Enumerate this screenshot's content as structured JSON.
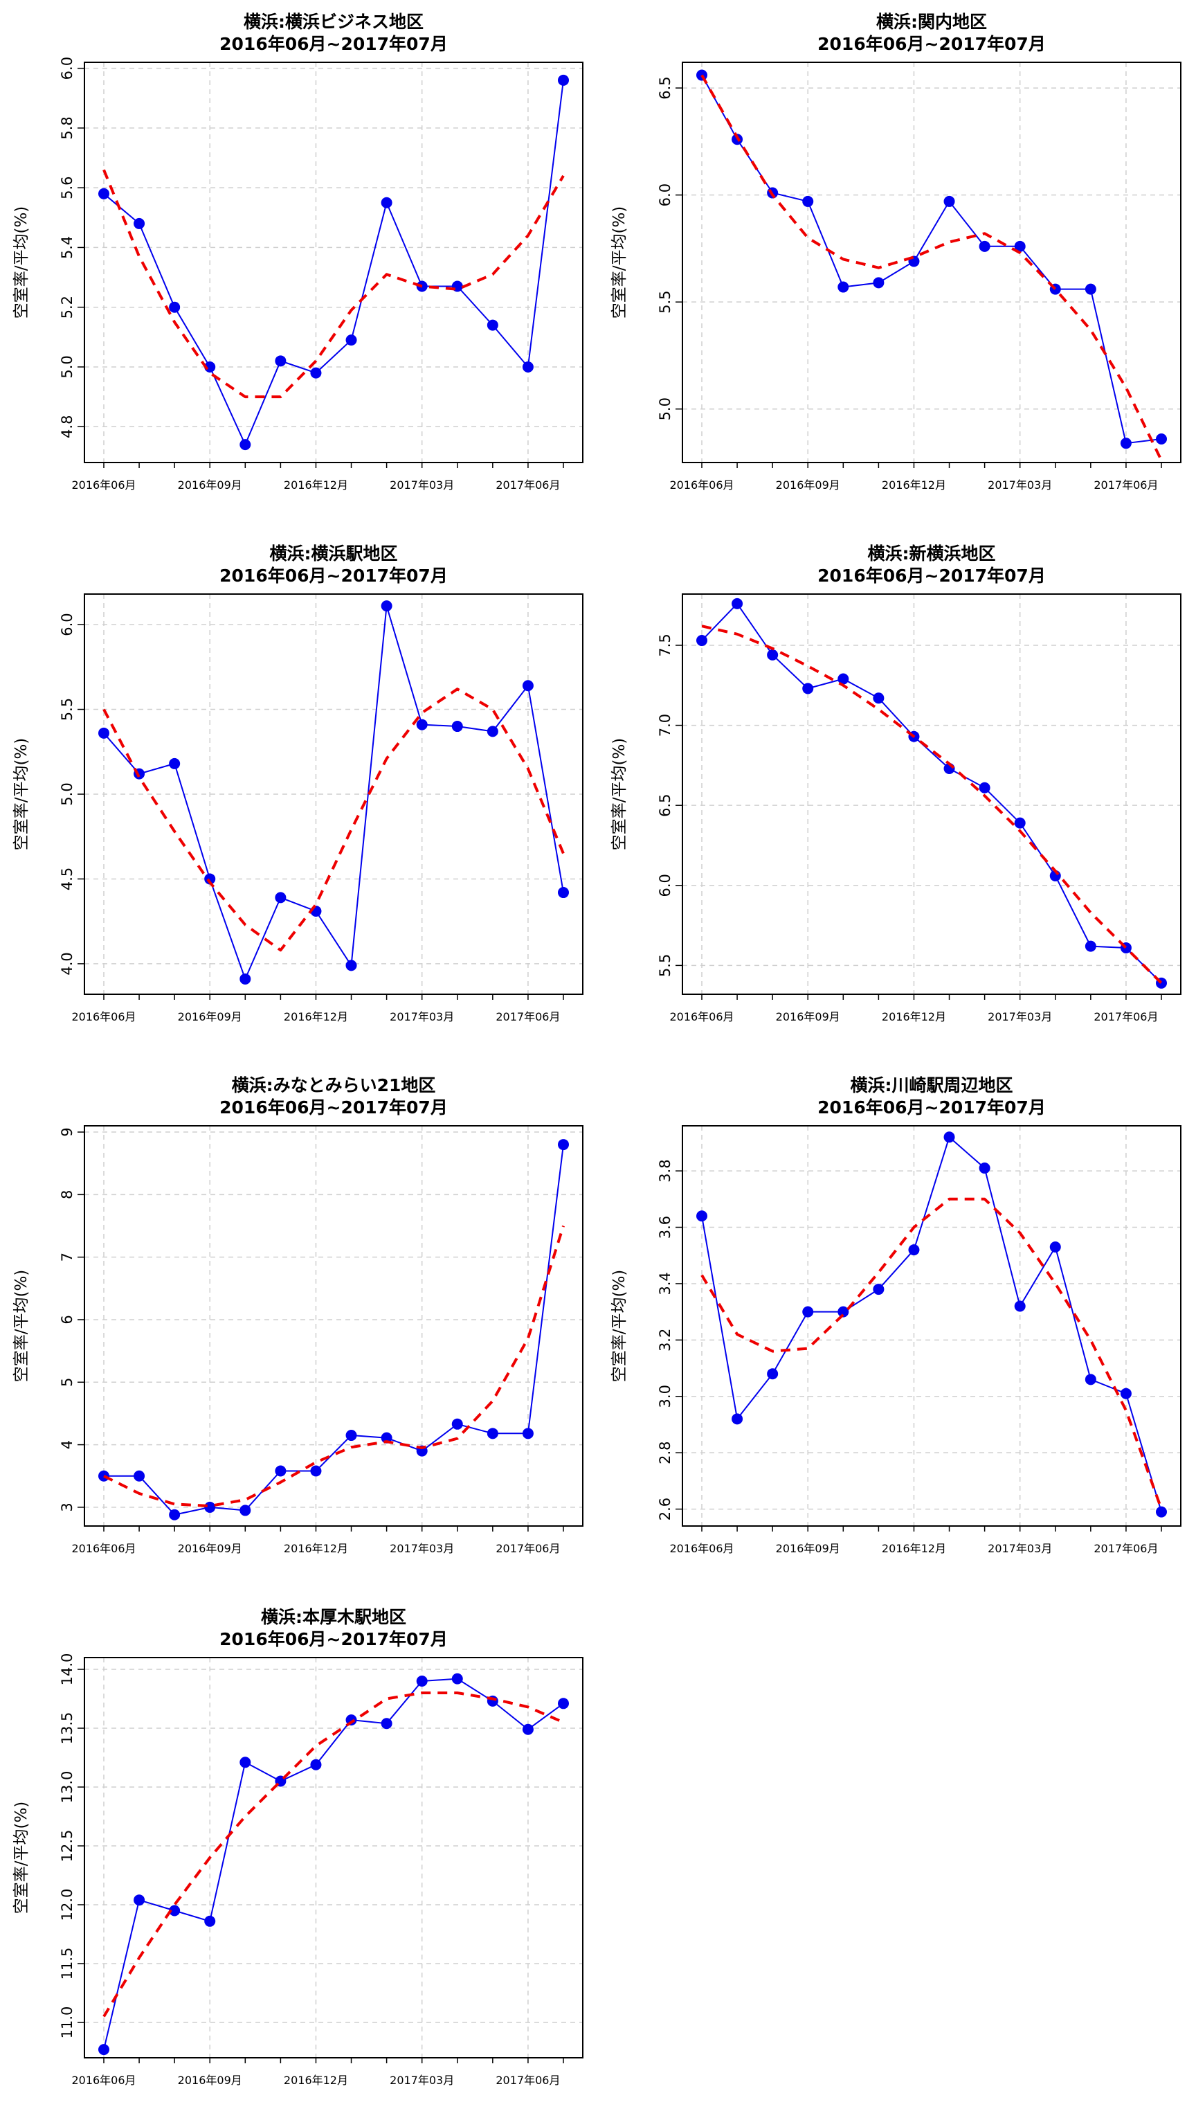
{
  "chart_data": [
    {
      "type": "line",
      "title": "横浜:横浜ビジネス地区",
      "subtitle": "2016年06月~2017年07月",
      "ylabel": "空室率/平均(%)",
      "x": [
        "2016-06",
        "2016-07",
        "2016-08",
        "2016-09",
        "2016-10",
        "2016-11",
        "2016-12",
        "2017-01",
        "2017-02",
        "2017-03",
        "2017-04",
        "2017-05",
        "2017-06",
        "2017-07"
      ],
      "x_tick_labels": [
        "2016年06月",
        "2016年09月",
        "2016年12月",
        "2017年03月",
        "2017年06月"
      ],
      "ylim": [
        4.68,
        6.02
      ],
      "yticks": [
        4.8,
        5.0,
        5.2,
        5.4,
        5.6,
        5.8,
        6.0
      ],
      "grid": true,
      "series": [
        {
          "style": "solid-markers",
          "color": "#0000ee",
          "values": [
            5.58,
            5.48,
            5.2,
            5.0,
            4.74,
            5.02,
            4.98,
            5.09,
            5.55,
            5.27,
            5.27,
            5.14,
            5.0,
            5.96
          ]
        },
        {
          "style": "dashed-smooth",
          "color": "#ee0000",
          "values": [
            5.66,
            5.37,
            5.15,
            4.98,
            4.9,
            4.9,
            5.02,
            5.19,
            5.31,
            5.27,
            5.26,
            5.31,
            5.44,
            5.64
          ]
        }
      ]
    },
    {
      "type": "line",
      "title": "横浜:関内地区",
      "subtitle": "2016年06月~2017年07月",
      "ylabel": "空室率/平均(%)",
      "x": [
        "2016-06",
        "2016-07",
        "2016-08",
        "2016-09",
        "2016-10",
        "2016-11",
        "2016-12",
        "2017-01",
        "2017-02",
        "2017-03",
        "2017-04",
        "2017-05",
        "2017-06",
        "2017-07"
      ],
      "x_tick_labels": [
        "2016年06月",
        "2016年09月",
        "2016年12月",
        "2017年03月",
        "2017年06月"
      ],
      "ylim": [
        4.75,
        6.62
      ],
      "yticks": [
        5.0,
        5.5,
        6.0,
        6.5
      ],
      "grid": true,
      "series": [
        {
          "style": "solid-markers",
          "color": "#0000ee",
          "values": [
            6.56,
            6.26,
            6.01,
            5.97,
            5.57,
            5.59,
            5.69,
            5.97,
            5.76,
            5.76,
            5.56,
            5.56,
            4.84,
            4.86
          ]
        },
        {
          "style": "dashed-smooth",
          "color": "#ee0000",
          "values": [
            6.56,
            6.27,
            6.0,
            5.8,
            5.7,
            5.66,
            5.71,
            5.78,
            5.82,
            5.73,
            5.56,
            5.37,
            5.1,
            4.76
          ]
        }
      ]
    },
    {
      "type": "line",
      "title": "横浜:横浜駅地区",
      "subtitle": "2016年06月~2017年07月",
      "ylabel": "空室率/平均(%)",
      "x": [
        "2016-06",
        "2016-07",
        "2016-08",
        "2016-09",
        "2016-10",
        "2016-11",
        "2016-12",
        "2017-01",
        "2017-02",
        "2017-03",
        "2017-04",
        "2017-05",
        "2017-06",
        "2017-07"
      ],
      "x_tick_labels": [
        "2016年06月",
        "2016年09月",
        "2016年12月",
        "2017年03月",
        "2017年06月"
      ],
      "ylim": [
        3.82,
        6.18
      ],
      "yticks": [
        4.0,
        4.5,
        5.0,
        5.5,
        6.0
      ],
      "grid": true,
      "series": [
        {
          "style": "solid-markers",
          "color": "#0000ee",
          "values": [
            5.36,
            5.12,
            5.18,
            4.5,
            3.91,
            4.39,
            4.31,
            3.99,
            6.11,
            5.41,
            5.4,
            5.37,
            5.64,
            4.42
          ]
        },
        {
          "style": "dashed-smooth",
          "color": "#ee0000",
          "values": [
            5.5,
            5.1,
            4.78,
            4.48,
            4.23,
            4.08,
            4.35,
            4.79,
            5.21,
            5.48,
            5.62,
            5.5,
            5.15,
            4.65
          ]
        }
      ]
    },
    {
      "type": "line",
      "title": "横浜:新横浜地区",
      "subtitle": "2016年06月~2017年07月",
      "ylabel": "空室率/平均(%)",
      "x": [
        "2016-06",
        "2016-07",
        "2016-08",
        "2016-09",
        "2016-10",
        "2016-11",
        "2016-12",
        "2017-01",
        "2017-02",
        "2017-03",
        "2017-04",
        "2017-05",
        "2017-06",
        "2017-07"
      ],
      "x_tick_labels": [
        "2016年06月",
        "2016年09月",
        "2016年12月",
        "2017年03月",
        "2017年06月"
      ],
      "ylim": [
        5.32,
        7.82
      ],
      "yticks": [
        5.5,
        6.0,
        6.5,
        7.0,
        7.5
      ],
      "grid": true,
      "series": [
        {
          "style": "solid-markers",
          "color": "#0000ee",
          "values": [
            7.53,
            7.76,
            7.44,
            7.23,
            7.29,
            7.17,
            6.93,
            6.73,
            6.61,
            6.39,
            6.06,
            5.62,
            5.61,
            5.39
          ]
        },
        {
          "style": "dashed-smooth",
          "color": "#ee0000",
          "values": [
            7.62,
            7.57,
            7.48,
            7.37,
            7.25,
            7.1,
            6.93,
            6.76,
            6.56,
            6.34,
            6.09,
            5.83,
            5.61,
            5.39
          ]
        }
      ]
    },
    {
      "type": "line",
      "title": "横浜:みなとみらい21地区",
      "subtitle": "2016年06月~2017年07月",
      "ylabel": "空室率/平均(%)",
      "x": [
        "2016-06",
        "2016-07",
        "2016-08",
        "2016-09",
        "2016-10",
        "2016-11",
        "2016-12",
        "2017-01",
        "2017-02",
        "2017-03",
        "2017-04",
        "2017-05",
        "2017-06",
        "2017-07"
      ],
      "x_tick_labels": [
        "2016年06月",
        "2016年09月",
        "2016年12月",
        "2017年03月",
        "2017年06月"
      ],
      "ylim": [
        2.7,
        9.1
      ],
      "yticks": [
        3,
        4,
        5,
        6,
        7,
        8,
        9
      ],
      "grid": true,
      "series": [
        {
          "style": "solid-markers",
          "color": "#0000ee",
          "values": [
            3.5,
            3.5,
            2.88,
            3.0,
            2.95,
            3.58,
            3.58,
            4.15,
            4.11,
            3.9,
            4.33,
            4.18,
            4.18,
            8.8
          ]
        },
        {
          "style": "dashed-smooth",
          "color": "#ee0000",
          "values": [
            3.5,
            3.22,
            3.05,
            3.02,
            3.12,
            3.4,
            3.72,
            3.96,
            4.05,
            3.95,
            4.1,
            4.7,
            5.7,
            7.5
          ]
        }
      ]
    },
    {
      "type": "line",
      "title": "横浜:川崎駅周辺地区",
      "subtitle": "2016年06月~2017年07月",
      "ylabel": "空室率/平均(%)",
      "x": [
        "2016-06",
        "2016-07",
        "2016-08",
        "2016-09",
        "2016-10",
        "2016-11",
        "2016-12",
        "2017-01",
        "2017-02",
        "2017-03",
        "2017-04",
        "2017-05",
        "2017-06",
        "2017-07"
      ],
      "x_tick_labels": [
        "2016年06月",
        "2016年09月",
        "2016年12月",
        "2017年03月",
        "2017年06月"
      ],
      "ylim": [
        2.54,
        3.96
      ],
      "yticks": [
        2.6,
        2.8,
        3.0,
        3.2,
        3.4,
        3.6,
        3.8
      ],
      "grid": true,
      "series": [
        {
          "style": "solid-markers",
          "color": "#0000ee",
          "values": [
            3.64,
            2.92,
            3.08,
            3.3,
            3.3,
            3.38,
            3.52,
            3.92,
            3.81,
            3.32,
            3.53,
            3.06,
            3.01,
            2.59
          ]
        },
        {
          "style": "dashed-smooth",
          "color": "#ee0000",
          "values": [
            3.43,
            3.22,
            3.16,
            3.17,
            3.29,
            3.44,
            3.6,
            3.7,
            3.7,
            3.58,
            3.4,
            3.2,
            2.95,
            2.6
          ]
        }
      ]
    },
    {
      "type": "line",
      "title": "横浜:本厚木駅地区",
      "subtitle": "2016年06月~2017年07月",
      "ylabel": "空室率/平均(%)",
      "x": [
        "2016-06",
        "2016-07",
        "2016-08",
        "2016-09",
        "2016-10",
        "2016-11",
        "2016-12",
        "2017-01",
        "2017-02",
        "2017-03",
        "2017-04",
        "2017-05",
        "2017-06",
        "2017-07"
      ],
      "x_tick_labels": [
        "2016年06月",
        "2016年09月",
        "2016年12月",
        "2017年03月",
        "2017年06月"
      ],
      "ylim": [
        10.7,
        14.1
      ],
      "yticks": [
        11.0,
        11.5,
        12.0,
        12.5,
        13.0,
        13.5,
        14.0
      ],
      "grid": true,
      "series": [
        {
          "style": "solid-markers",
          "color": "#0000ee",
          "values": [
            10.77,
            12.04,
            11.95,
            11.86,
            13.21,
            13.05,
            13.19,
            13.57,
            13.54,
            13.9,
            13.92,
            13.73,
            13.49,
            13.71
          ]
        },
        {
          "style": "dashed-smooth",
          "color": "#ee0000",
          "values": [
            11.05,
            11.55,
            12.0,
            12.4,
            12.75,
            13.05,
            13.35,
            13.55,
            13.75,
            13.8,
            13.8,
            13.75,
            13.68,
            13.55
          ]
        }
      ]
    }
  ]
}
